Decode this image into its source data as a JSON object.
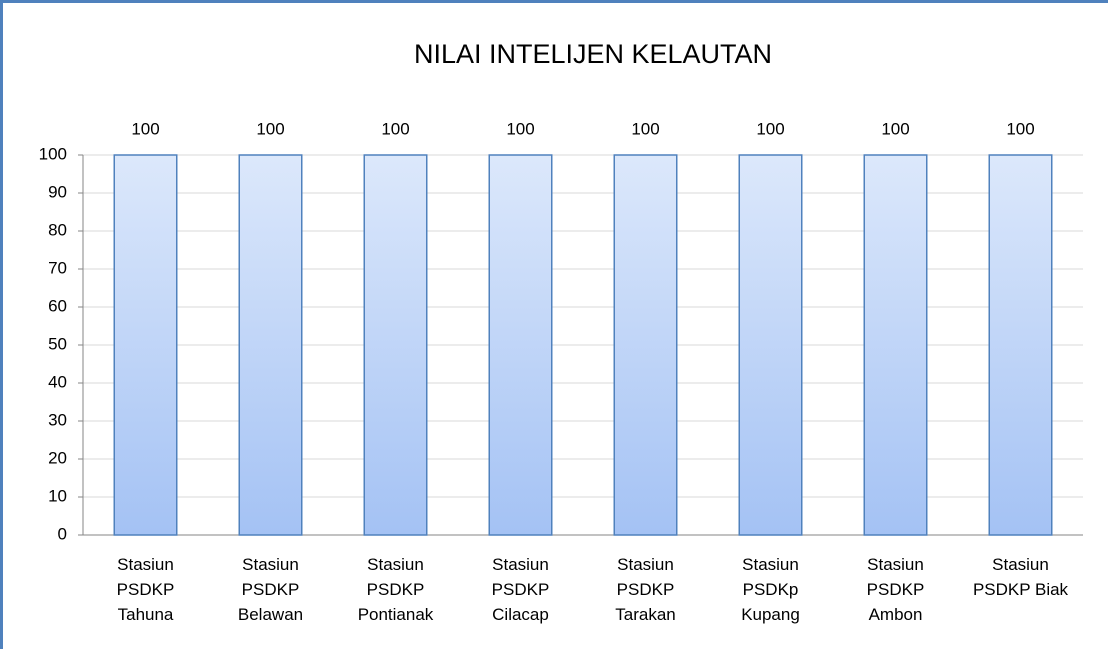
{
  "chart_data": {
    "type": "bar",
    "title": "NILAI INTELIJEN KELAUTAN",
    "categories": [
      "Stasiun PSDKP Tahuna",
      "Stasiun PSDKP Belawan",
      "Stasiun PSDKP Pontianak",
      "Stasiun PSDKP Cilacap",
      "Stasiun PSDKP Tarakan",
      "Stasiun PSDKp Kupang",
      "Stasiun PSDKP Ambon",
      "Stasiun PSDKP Biak"
    ],
    "values": [
      100,
      100,
      100,
      100,
      100,
      100,
      100,
      100
    ],
    "color": "#a4c2f4",
    "ylim": [
      0,
      100
    ],
    "yticks": [
      0,
      10,
      20,
      30,
      40,
      50,
      60,
      70,
      80,
      90,
      100
    ],
    "grid": true,
    "data_labels": true
  }
}
